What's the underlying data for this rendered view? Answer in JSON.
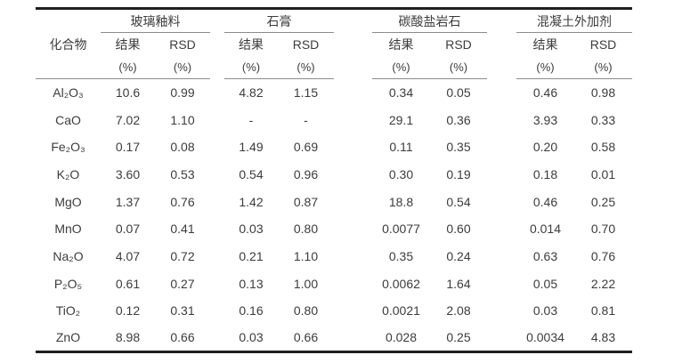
{
  "colors": {
    "thick": "#1f1f1f",
    "thin": "#8c8c8c",
    "text": "#3c3c3c",
    "bg": "#ffffff"
  },
  "table": {
    "compound_header": "化合物",
    "result_label": "结果",
    "rsd_label": "RSD",
    "unit": "(%)",
    "groups": [
      {
        "label": "玻璃釉料"
      },
      {
        "label": "石膏"
      },
      {
        "label": "碳酸盐岩石"
      },
      {
        "label": "混凝土外加剂"
      }
    ],
    "rows": [
      {
        "compound": "Al₂O₃",
        "values": [
          "10.6",
          "0.99",
          "4.82",
          "1.15",
          "0.34",
          "0.05",
          "0.46",
          "0.98"
        ]
      },
      {
        "compound": "CaO",
        "values": [
          "7.02",
          "1.10",
          "-",
          "-",
          "29.1",
          "0.36",
          "3.93",
          "0.33"
        ]
      },
      {
        "compound": "Fe₂O₃",
        "values": [
          "0.17",
          "0.08",
          "1.49",
          "0.69",
          "0.11",
          "0.35",
          "0.20",
          "0.58"
        ]
      },
      {
        "compound": "K₂O",
        "values": [
          "3.60",
          "0.53",
          "0.54",
          "0.96",
          "0.30",
          "0.19",
          "0.18",
          "0.01"
        ]
      },
      {
        "compound": "MgO",
        "values": [
          "1.37",
          "0.76",
          "1.42",
          "0.87",
          "18.8",
          "0.54",
          "0.46",
          "0.25"
        ]
      },
      {
        "compound": "MnO",
        "values": [
          "0.07",
          "0.41",
          "0.03",
          "0.80",
          "0.0077",
          "0.60",
          "0.014",
          "0.70"
        ]
      },
      {
        "compound": "Na₂O",
        "values": [
          "4.07",
          "0.72",
          "0.21",
          "1.10",
          "0.35",
          "0.24",
          "0.63",
          "0.76"
        ]
      },
      {
        "compound": "P₂O₅",
        "values": [
          "0.61",
          "0.27",
          "0.13",
          "1.00",
          "0.0062",
          "1.64",
          "0.05",
          "2.22"
        ]
      },
      {
        "compound": "TiO₂",
        "values": [
          "0.12",
          "0.31",
          "0.16",
          "0.80",
          "0.0021",
          "2.08",
          "0.03",
          "0.81"
        ]
      },
      {
        "compound": "ZnO",
        "values": [
          "8.98",
          "0.66",
          "0.03",
          "0.66",
          "0.028",
          "0.25",
          "0.0034",
          "4.83"
        ]
      }
    ]
  }
}
